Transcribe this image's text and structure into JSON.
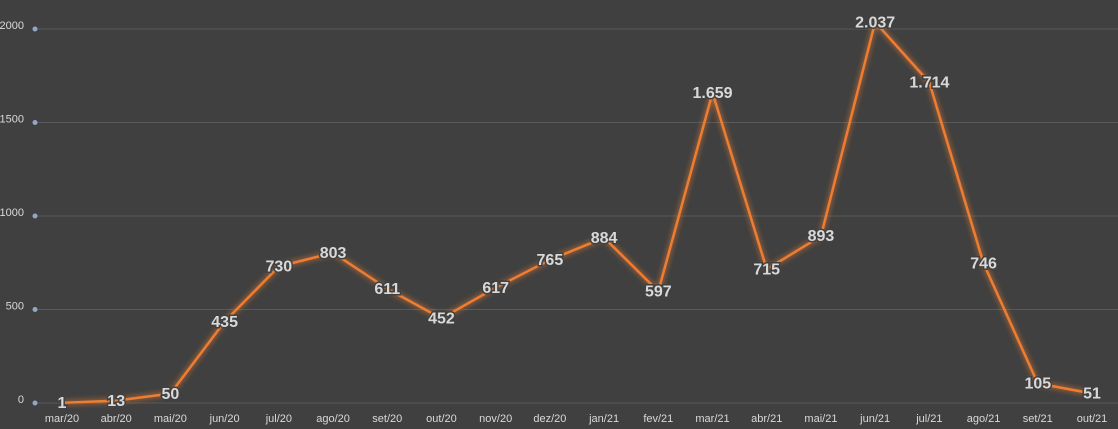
{
  "chart_data": {
    "type": "line",
    "categories": [
      "mar/20",
      "abr/20",
      "mai/20",
      "jun/20",
      "jul/20",
      "ago/20",
      "set/20",
      "out/20",
      "nov/20",
      "dez/20",
      "jan/21",
      "fev/21",
      "mar/21",
      "abr/21",
      "mai/21",
      "jun/21",
      "jul/21",
      "ago/21",
      "set/21",
      "out/21"
    ],
    "values": [
      1,
      13,
      50,
      435,
      730,
      803,
      611,
      452,
      617,
      765,
      884,
      597,
      1659,
      715,
      893,
      2037,
      1714,
      746,
      105,
      51
    ],
    "value_labels": [
      "1",
      "13",
      "50",
      "435",
      "730",
      "803",
      "611",
      "452",
      "617",
      "765",
      "884",
      "597",
      "1.659",
      "715",
      "893",
      "2.037",
      "1.714",
      "746",
      "105",
      "51"
    ],
    "color": "#ed7d31",
    "ylim": [
      0,
      2000
    ],
    "yticks": [
      0,
      500,
      1000,
      1500,
      2000
    ],
    "grid": true
  }
}
